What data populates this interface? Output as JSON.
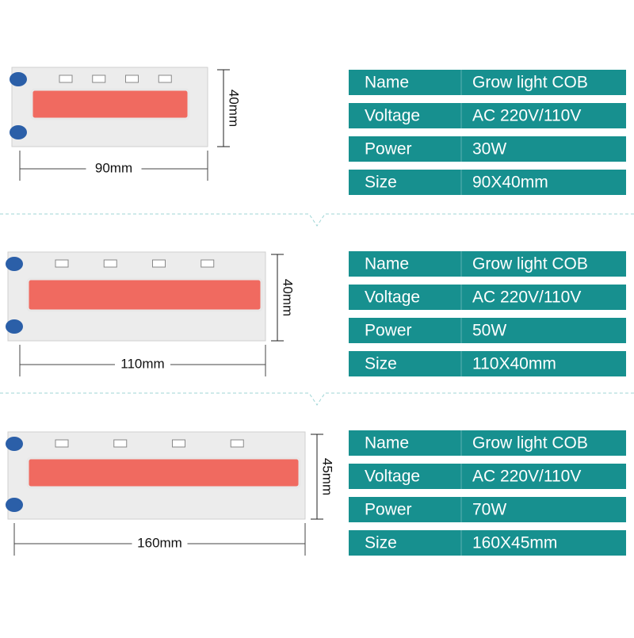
{
  "products": [
    {
      "width_label": "90mm",
      "height_label": "40mm",
      "specs": [
        [
          "Name",
          "Grow light COB"
        ],
        [
          "Voltage",
          "AC 220V/110V"
        ],
        [
          "Power",
          "30W"
        ],
        [
          "Size",
          "90X40mm"
        ]
      ]
    },
    {
      "width_label": "110mm",
      "height_label": "40mm",
      "specs": [
        [
          "Name",
          "Grow light COB"
        ],
        [
          "Voltage",
          "AC 220V/110V"
        ],
        [
          "Power",
          "50W"
        ],
        [
          "Size",
          "110X40mm"
        ]
      ]
    },
    {
      "width_label": "160mm",
      "height_label": "45mm",
      "specs": [
        [
          "Name",
          "Grow light COB"
        ],
        [
          "Voltage",
          "AC 220V/110V"
        ],
        [
          "Power",
          "70W"
        ],
        [
          "Size",
          "160X45mm"
        ]
      ]
    }
  ]
}
